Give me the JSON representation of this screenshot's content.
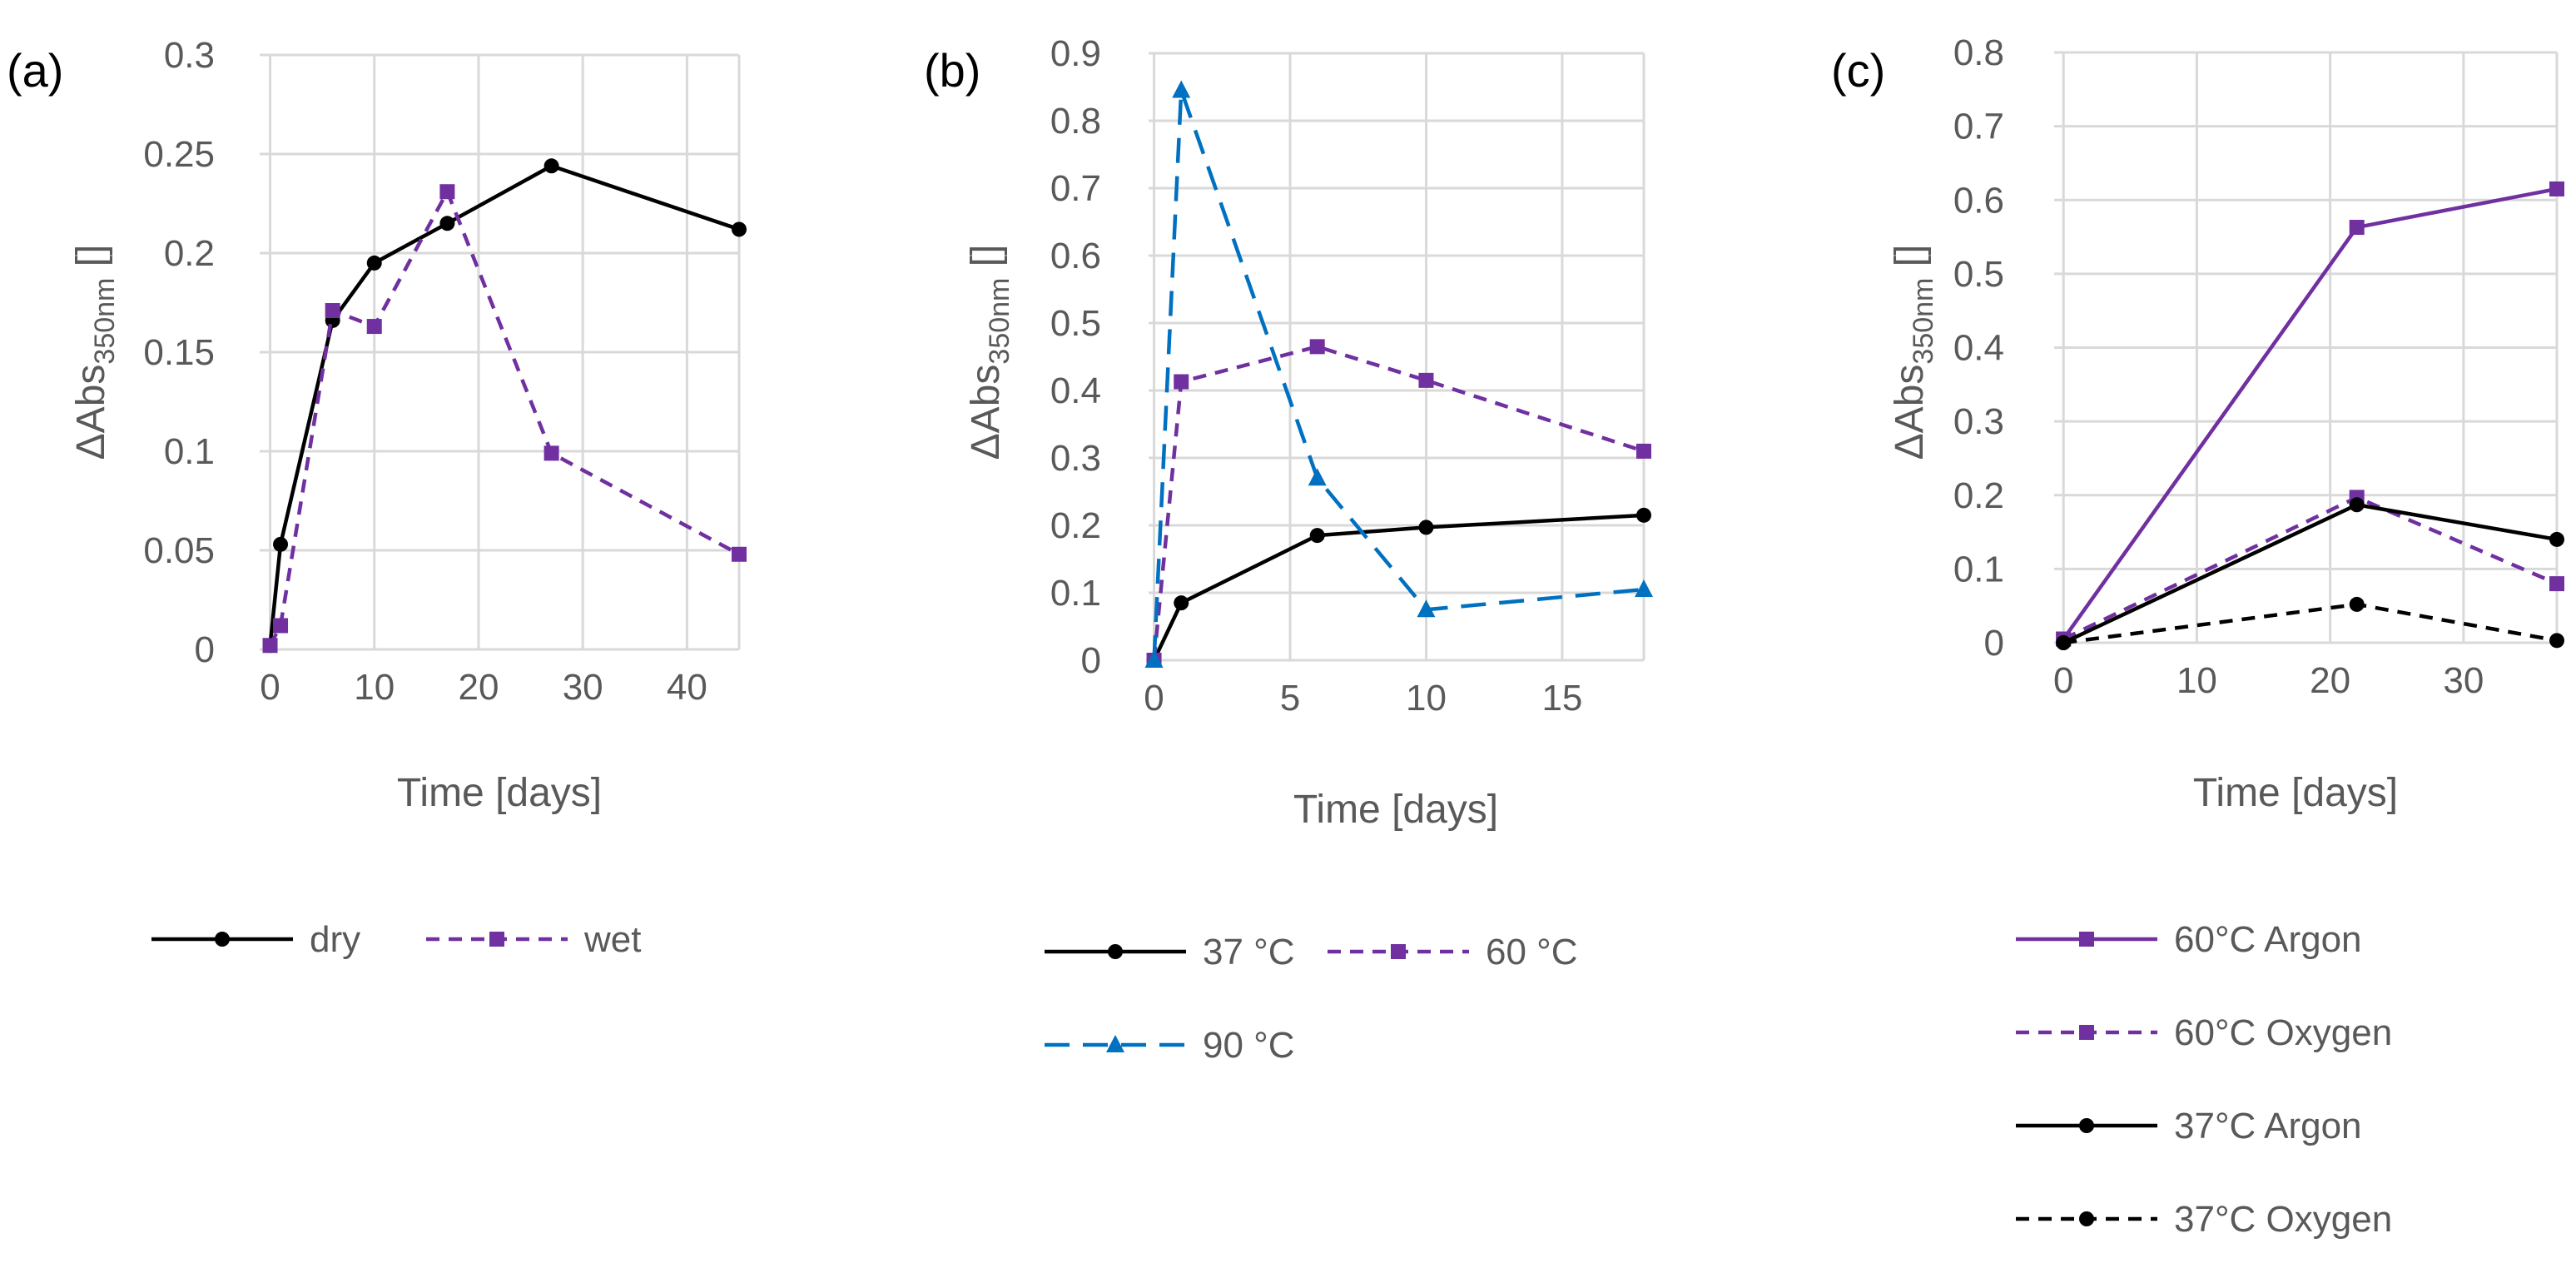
{
  "colors": {
    "black": "#000000",
    "purple": "#7030A0",
    "blue": "#0070C0",
    "grid": "#D9D9D9",
    "text": "#595959"
  },
  "chart_data": [
    {
      "type": "line",
      "panel_label": "(a)",
      "xlabel": "Time [days]",
      "ylabel_main": "ΔAbs",
      "ylabel_sub": "350nm",
      "ylabel_unit": "[]",
      "xlim": [
        -1,
        45
      ],
      "ylim": [
        0,
        0.3
      ],
      "xticks": [
        0,
        10,
        20,
        30,
        40
      ],
      "yticks": [
        0,
        0.05,
        0.1,
        0.15,
        0.2,
        0.25,
        0.3
      ],
      "ytick_labels": [
        "0",
        "0.05",
        "0.1",
        "0.15",
        "0.2",
        "0.25",
        "0.3"
      ],
      "legend_layout": "row",
      "series": [
        {
          "name": "dry",
          "color": "#000000",
          "dash": "solid",
          "marker": "circle",
          "points": [
            [
              0,
              0.002
            ],
            [
              1,
              0.053
            ],
            [
              6,
              0.166
            ],
            [
              10,
              0.195
            ],
            [
              17,
              0.215
            ],
            [
              27,
              0.244
            ],
            [
              45,
              0.212
            ]
          ]
        },
        {
          "name": "wet",
          "color": "#7030A0",
          "dash": "dashed",
          "marker": "square",
          "points": [
            [
              0,
              0.002
            ],
            [
              1,
              0.012
            ],
            [
              6,
              0.171
            ],
            [
              10,
              0.163
            ],
            [
              17,
              0.231
            ],
            [
              27,
              0.099
            ],
            [
              45,
              0.048
            ]
          ]
        }
      ]
    },
    {
      "type": "line",
      "panel_label": "(b)",
      "xlabel": "Time [days]",
      "ylabel_main": "ΔAbs",
      "ylabel_sub": "350nm",
      "ylabel_unit": "[]",
      "xlim": [
        -0.2,
        18
      ],
      "ylim": [
        0,
        0.9
      ],
      "xticks": [
        0,
        5,
        10,
        15
      ],
      "yticks": [
        0,
        0.1,
        0.2,
        0.3,
        0.4,
        0.5,
        0.6,
        0.7,
        0.8,
        0.9
      ],
      "ytick_labels": [
        "0",
        "0.1",
        "0.2",
        "0.3",
        "0.4",
        "0.5",
        "0.6",
        "0.7",
        "0.8",
        "0.9"
      ],
      "legend_layout": "wrap2",
      "series": [
        {
          "name": "37 °C",
          "color": "#000000",
          "dash": "solid",
          "marker": "circle",
          "points": [
            [
              0,
              0.0
            ],
            [
              1,
              0.085
            ],
            [
              6,
              0.185
            ],
            [
              10,
              0.197
            ],
            [
              18,
              0.215
            ]
          ]
        },
        {
          "name": "60 °C",
          "color": "#7030A0",
          "dash": "dashed",
          "marker": "square",
          "points": [
            [
              0,
              0.0
            ],
            [
              1,
              0.413
            ],
            [
              6,
              0.465
            ],
            [
              10,
              0.415
            ],
            [
              18,
              0.31
            ]
          ]
        },
        {
          "name": "90 °C",
          "color": "#0070C0",
          "dash": "longdash",
          "marker": "triangle",
          "points": [
            [
              0,
              0.0
            ],
            [
              1,
              0.845
            ],
            [
              6,
              0.27
            ],
            [
              10,
              0.075
            ],
            [
              18,
              0.105
            ]
          ]
        }
      ]
    },
    {
      "type": "line",
      "panel_label": "(c)",
      "xlabel": "Time [days]",
      "ylabel_main": "ΔAbs",
      "ylabel_sub": "350nm",
      "ylabel_unit": "[]",
      "xlim": [
        -0.7,
        37
      ],
      "ylim": [
        0,
        0.8
      ],
      "xticks": [
        0,
        10,
        20,
        30
      ],
      "yticks": [
        0,
        0.1,
        0.2,
        0.3,
        0.4,
        0.5,
        0.6,
        0.7,
        0.8
      ],
      "ytick_labels": [
        "0",
        "0.1",
        "0.2",
        "0.3",
        "0.4",
        "0.5",
        "0.6",
        "0.7",
        "0.8"
      ],
      "legend_layout": "column",
      "series": [
        {
          "name": "60°C Argon",
          "color": "#7030A0",
          "dash": "solid",
          "marker": "square",
          "points": [
            [
              0,
              0.005
            ],
            [
              22,
              0.563
            ],
            [
              37,
              0.615
            ]
          ]
        },
        {
          "name": "60°C Oxygen",
          "color": "#7030A0",
          "dash": "dashed",
          "marker": "square",
          "points": [
            [
              0,
              0.005
            ],
            [
              22,
              0.197
            ],
            [
              37,
              0.08
            ]
          ]
        },
        {
          "name": "37°C Argon",
          "color": "#000000",
          "dash": "solid",
          "marker": "circle",
          "points": [
            [
              0,
              0.0
            ],
            [
              22,
              0.187
            ],
            [
              37,
              0.14
            ]
          ]
        },
        {
          "name": "37°C Oxygen",
          "color": "#000000",
          "dash": "dashed",
          "marker": "circle",
          "points": [
            [
              0,
              0.0
            ],
            [
              22,
              0.052
            ],
            [
              37,
              0.003
            ]
          ]
        }
      ]
    }
  ]
}
